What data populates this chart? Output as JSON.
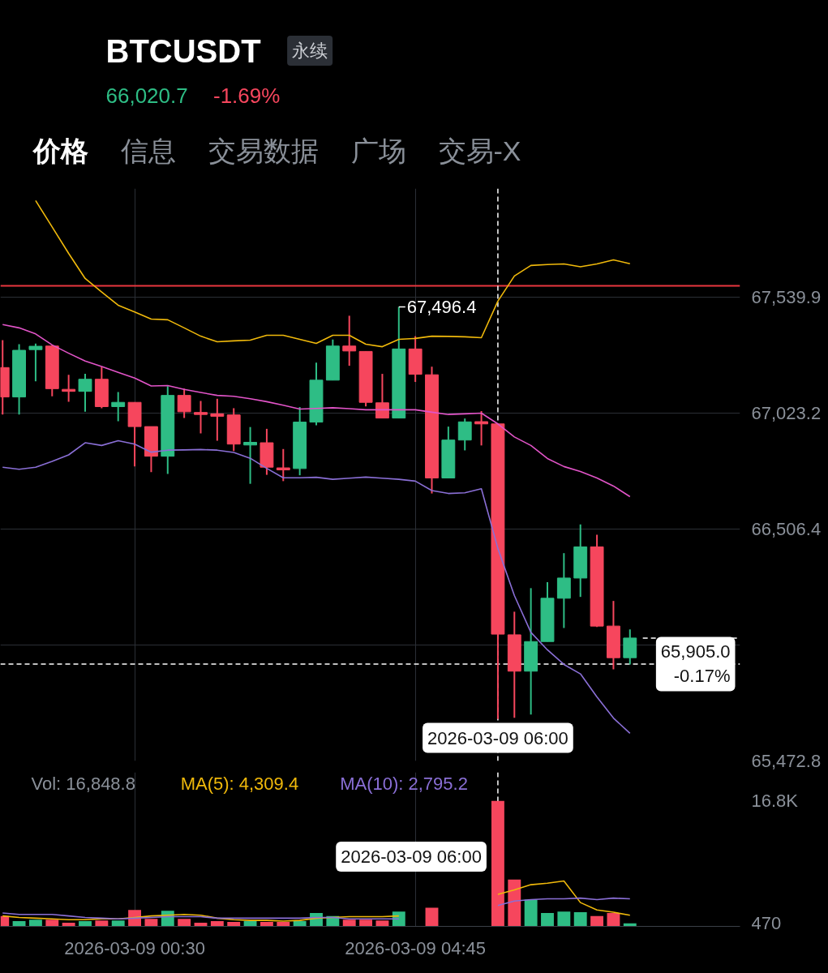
{
  "chart_data": [
    {
      "type": "candlestick",
      "title": "BTCUSDT",
      "annotations": [
        "永续",
        "66,020.7",
        "-1.69%",
        "价格",
        "信息",
        "交易数据",
        "广场",
        "交易-X",
        {
          "text": "67,496.4",
          "x": "2026-03-09T04:30",
          "y": 67496.4
        }
      ],
      "x": [
        "2026-03-08T22:30",
        "2026-03-08T22:45",
        "2026-03-08T23:00",
        "2026-03-08T23:15",
        "2026-03-08T23:30",
        "2026-03-08T23:45",
        "2026-03-09T00:00",
        "2026-03-09T00:15",
        "2026-03-09T00:30",
        "2026-03-09T00:45",
        "2026-03-09T01:00",
        "2026-03-09T01:15",
        "2026-03-09T01:30",
        "2026-03-09T01:45",
        "2026-03-09T02:00",
        "2026-03-09T02:15",
        "2026-03-09T02:30",
        "2026-03-09T02:45",
        "2026-03-09T03:00",
        "2026-03-09T03:15",
        "2026-03-09T03:30",
        "2026-03-09T03:45",
        "2026-03-09T04:00",
        "2026-03-09T04:15",
        "2026-03-09T04:30",
        "2026-03-09T04:45",
        "2026-03-09T05:00",
        "2026-03-09T05:15",
        "2026-03-09T05:30",
        "2026-03-09T05:45",
        "2026-03-09T06:00",
        "2026-03-09T06:15",
        "2026-03-09T06:30",
        "2026-03-09T06:45",
        "2026-03-09T07:00",
        "2026-03-09T07:15",
        "2026-03-09T07:30",
        "2026-03-09T07:45",
        "2026-03-09T08:00"
      ],
      "ohlc": [
        [
          67226,
          67348,
          67017,
          67095
        ],
        [
          67095,
          67330,
          67017,
          67303
        ],
        [
          67306,
          67333,
          67165,
          67321
        ],
        [
          67322,
          67325,
          67098,
          67132
        ],
        [
          67129,
          67194,
          67074,
          67120
        ],
        [
          67120,
          67198,
          67029,
          67174
        ],
        [
          67174,
          67230,
          67045,
          67052
        ],
        [
          67052,
          67117,
          66987,
          67071
        ],
        [
          67071,
          67071,
          66785,
          66963
        ],
        [
          66963,
          66963,
          66760,
          66831
        ],
        [
          66831,
          67143,
          66752,
          67102
        ],
        [
          67102,
          67132,
          67001,
          67029
        ],
        [
          67026,
          67077,
          66933,
          67017
        ],
        [
          67020,
          67087,
          66900,
          67009
        ],
        [
          67015,
          67045,
          66854,
          66885
        ],
        [
          66881,
          66961,
          66708,
          66893
        ],
        [
          66891,
          66953,
          66748,
          66782
        ],
        [
          66779,
          66863,
          66720,
          66770
        ],
        [
          66776,
          67050,
          66746,
          66983
        ],
        [
          66983,
          67248,
          66969,
          67170
        ],
        [
          67170,
          67351,
          67170,
          67322
        ],
        [
          67322,
          67457,
          67234,
          67300
        ],
        [
          67298,
          67298,
          67053,
          67071
        ],
        [
          67069,
          67198,
          67001,
          67001
        ],
        [
          67001,
          67496.4,
          67001,
          67309
        ],
        [
          67309,
          67366,
          67162,
          67196
        ],
        [
          67194,
          67230,
          66665,
          66734
        ],
        [
          66734,
          66963,
          66734,
          66903
        ],
        [
          66903,
          66999,
          66857,
          66984
        ],
        [
          66985,
          67032,
          66879,
          66975
        ],
        [
          66975,
          66975,
          65660,
          66038
        ],
        [
          66035,
          66138,
          65665,
          65873
        ],
        [
          65873,
          66243,
          65680,
          66005
        ],
        [
          66005,
          66270,
          66005,
          66198
        ],
        [
          66198,
          66399,
          66065,
          66288
        ],
        [
          66288,
          66527,
          66204,
          66427
        ],
        [
          66427,
          66481,
          66070,
          66074
        ],
        [
          66074,
          66186,
          65881,
          65933
        ],
        [
          65933,
          66059,
          65903,
          66020.7
        ]
      ],
      "colors": [
        "#f6465d",
        "#2ebd85",
        "#2ebd85",
        "#f6465d",
        "#f6465d",
        "#2ebd85",
        "#f6465d",
        "#2ebd85",
        "#f6465d",
        "#f6465d",
        "#2ebd85",
        "#f6465d",
        "#f6465d",
        "#f6465d",
        "#f6465d",
        "#2ebd85",
        "#f6465d",
        "#f6465d",
        "#2ebd85",
        "#2ebd85",
        "#2ebd85",
        "#f6465d",
        "#f6465d",
        "#f6465d",
        "#2ebd85",
        "#f6465d",
        "#f6465d",
        "#2ebd85",
        "#2ebd85",
        "#f6465d",
        "#f6465d",
        "#f6465d",
        "#2ebd85",
        "#2ebd85",
        "#2ebd85",
        "#2ebd85",
        "#f6465d",
        "#f6465d",
        "#2ebd85"
      ],
      "series": [
        {
          "type": "line",
          "color": "#f0b90b",
          "values": [
            null,
            null,
            67970,
            67853,
            67735,
            67623,
            67563,
            67504,
            67474,
            67442,
            67439,
            67403,
            67366,
            67341,
            67345,
            67348,
            67370,
            67370,
            67352,
            67334,
            67370,
            67370,
            67330,
            67319,
            67352,
            67356,
            67366,
            67365,
            67363,
            67359,
            67522,
            67634,
            67681,
            67685,
            67688,
            67675,
            67688,
            67706,
            67689
          ]
        },
        {
          "type": "line",
          "color": "#e254c8",
          "values": [
            67418,
            67403,
            67376,
            67327,
            67290,
            67255,
            67231,
            67205,
            67179,
            67144,
            67146,
            67129,
            67115,
            67102,
            67098,
            67087,
            67074,
            67058,
            67041,
            67044,
            67047,
            67043,
            67038,
            67038,
            67038,
            67038,
            67027,
            67017,
            67020,
            67023,
            66975,
            66917,
            66879,
            66821,
            66785,
            66763,
            66734,
            66698,
            66651
          ]
        },
        {
          "type": "line",
          "color": "#8a6fd6",
          "values": [
            66782,
            66773,
            66782,
            66808,
            66837,
            66891,
            66879,
            66900,
            66885,
            66849,
            66858,
            66859,
            66861,
            66858,
            66848,
            66822,
            66777,
            66735,
            66735,
            66737,
            66728,
            66733,
            66738,
            66733,
            66728,
            66720,
            66678,
            66665,
            66668,
            66686,
            66420,
            66210,
            66046,
            65968,
            65903,
            65861,
            65758,
            65664,
            65596
          ]
        }
      ],
      "xlim": [
        "2026-03-08T22:28",
        "2026-03-09T09:40"
      ],
      "xticks": [
        {
          "value": "2026-03-09T00:30",
          "label": null
        },
        {
          "value": "2026-03-09T04:45",
          "label": null
        }
      ],
      "ylim": [
        65472.8,
        68024
      ],
      "yticks": [
        {
          "value": 65472.8,
          "label": "65,472.8"
        },
        {
          "value": 65989.6,
          "label": null
        },
        {
          "value": 66506.4,
          "label": "66,506.4"
        },
        {
          "value": 67023.2,
          "label": "67,023.2"
        },
        {
          "value": 67539.9,
          "label": "67,539.9"
        }
      ],
      "tick_labels": "y",
      "grid": true,
      "ref_lines": [
        {
          "axis": "y",
          "value": 67590,
          "color": "#e8363f"
        },
        {
          "axis": "y",
          "value": 66020.7,
          "line_style": "dashed",
          "color": "#ffffff"
        },
        {
          "axis": "y",
          "value": 65905.0,
          "label": "65,905.0\n-0.17%",
          "line_style": "dashed",
          "color": "#ffffff"
        },
        {
          "axis": "x",
          "value": "2026-03-09T06:00",
          "label": "2026-03-09 06:00",
          "line_style": "dashed",
          "color": "#ffffff"
        }
      ]
    },
    {
      "type": "bar",
      "annotations": [
        "Vol: 16,848.8"
      ],
      "x": [
        "2026-03-08T22:30",
        "2026-03-08T22:45",
        "2026-03-08T23:00",
        "2026-03-08T23:15",
        "2026-03-08T23:30",
        "2026-03-08T23:45",
        "2026-03-09T00:00",
        "2026-03-09T00:15",
        "2026-03-09T00:30",
        "2026-03-09T00:45",
        "2026-03-09T01:00",
        "2026-03-09T01:15",
        "2026-03-09T01:30",
        "2026-03-09T01:45",
        "2026-03-09T02:00",
        "2026-03-09T02:15",
        "2026-03-09T02:30",
        "2026-03-09T02:45",
        "2026-03-09T03:00",
        "2026-03-09T03:15",
        "2026-03-09T03:30",
        "2026-03-09T03:45",
        "2026-03-09T04:00",
        "2026-03-09T04:15",
        "2026-03-09T04:30",
        "2026-03-09T04:45",
        "2026-03-09T05:00",
        "2026-03-09T05:15",
        "2026-03-09T05:30",
        "2026-03-09T05:45",
        "2026-03-09T06:00",
        "2026-03-09T06:15",
        "2026-03-09T06:30",
        "2026-03-09T06:45",
        "2026-03-09T07:00",
        "2026-03-09T07:15",
        "2026-03-09T07:30",
        "2026-03-09T07:45",
        "2026-03-09T08:00"
      ],
      "series": [
        {
          "colors": [
            "#f6465d",
            "#2ebd85",
            "#2ebd85",
            "#f6465d",
            "#f6465d",
            "#2ebd85",
            "#f6465d",
            "#2ebd85",
            "#f6465d",
            "#f6465d",
            "#2ebd85",
            "#f6465d",
            "#f6465d",
            "#f6465d",
            "#f6465d",
            "#2ebd85",
            "#f6465d",
            "#f6465d",
            "#2ebd85",
            "#2ebd85",
            "#2ebd85",
            "#f6465d",
            "#f6465d",
            "#f6465d",
            "#2ebd85",
            "#f6465d",
            "#f6465d",
            "#2ebd85",
            "#2ebd85",
            "#f6465d",
            "#f6465d",
            "#f6465d",
            "#2ebd85",
            "#2ebd85",
            "#2ebd85",
            "#2ebd85",
            "#f6465d",
            "#f6465d",
            "#2ebd85"
          ],
          "values": [
            1400,
            700,
            900,
            900,
            500,
            700,
            800,
            800,
            2200,
            1000,
            2100,
            1000,
            500,
            700,
            600,
            700,
            600,
            600,
            700,
            1800,
            1400,
            900,
            900,
            800,
            2000,
            null,
            2500,
            null,
            null,
            null,
            16848.8,
            6300,
            3600,
            1800,
            2000,
            1900,
            1400,
            1800,
            400
          ]
        },
        {
          "type": "line",
          "name": "MA(5): 4,309.4",
          "color": "#f0b90b",
          "values": [
            1400,
            1200,
            1100,
            1000,
            900,
            900,
            1000,
            1000,
            1200,
            1400,
            1500,
            1600,
            1500,
            1100,
            900,
            800,
            800,
            700,
            800,
            1100,
            1200,
            1300,
            1300,
            1300,
            1400,
            null,
            null,
            null,
            null,
            null,
            4309.4,
            4900,
            5600,
            5800,
            6100,
            3200,
            2200,
            1900,
            1500
          ]
        },
        {
          "type": "line",
          "name": "MA(10): 2,795.2",
          "color": "#8a6fd6",
          "values": [
            1800,
            1600,
            1600,
            1600,
            1400,
            1200,
            1100,
            1000,
            1100,
            1200,
            1300,
            1300,
            1300,
            1100,
            1100,
            1100,
            1100,
            1100,
            1100,
            1200,
            1200,
            1000,
            1000,
            1000,
            1000,
            null,
            null,
            null,
            null,
            null,
            2795.2,
            3400,
            3600,
            3700,
            3700,
            3800,
            3600,
            3800,
            3700
          ]
        }
      ],
      "xlim": [
        "2026-03-08T22:28",
        "2026-03-09T09:40"
      ],
      "xticks": [
        {
          "value": "2026-03-09T00:30",
          "label": "2026-03-09 00:30"
        },
        {
          "value": "2026-03-09T04:45",
          "label": "2026-03-09 04:45"
        }
      ],
      "ylim": [
        0,
        20700
      ],
      "yticks": [
        470,
        {
          "value": 16848.8,
          "label": "16.8K"
        }
      ],
      "grid": "x",
      "legend": "top left",
      "ref_lines": [
        {
          "axis": "x",
          "value": "2026-03-09T06:00",
          "label": "2026-03-09 06:00",
          "line_style": "dashed",
          "color": "#ffffff"
        }
      ]
    }
  ]
}
